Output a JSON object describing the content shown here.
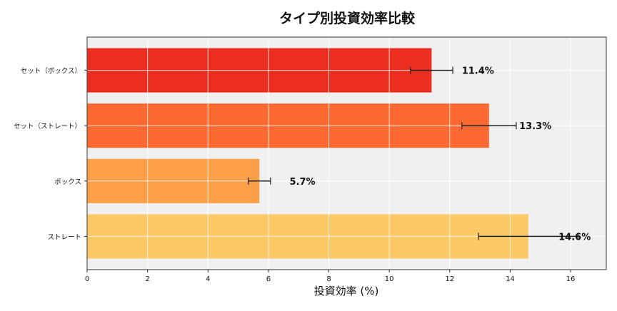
{
  "chart_data": {
    "type": "bar",
    "orientation": "horizontal",
    "title": "タイプ別投資効率比較",
    "xlabel": "投資効率 (%)",
    "ylabel": "",
    "categories": [
      "ストレート",
      "ボックス",
      "セット（ストレート）",
      "セット（ボックス）"
    ],
    "values": [
      14.6,
      5.7,
      13.3,
      11.4
    ],
    "errors": [
      1.65,
      0.37,
      0.9,
      0.7
    ],
    "data_labels": [
      "14.6%",
      "5.7%",
      "13.3%",
      "11.4%"
    ],
    "colors": [
      "#fdc966",
      "#fd9f47",
      "#fc6a32",
      "#ec2e21"
    ],
    "xlim": [
      0,
      17.18
    ],
    "xticks": [
      0,
      2,
      4,
      6,
      8,
      10,
      12,
      14,
      16
    ],
    "grid": true,
    "background": "#f0f0f0"
  }
}
